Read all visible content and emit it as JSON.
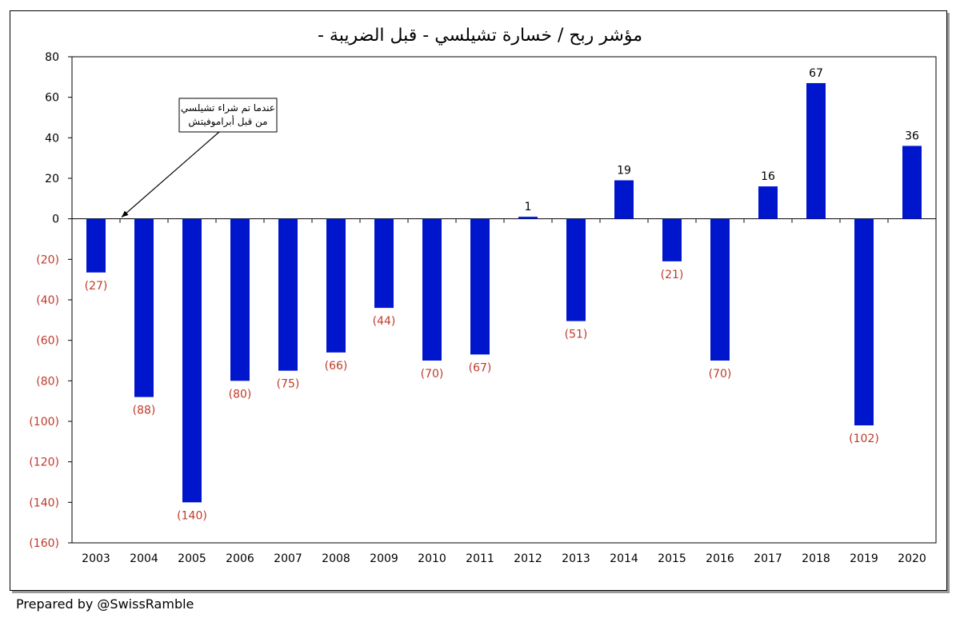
{
  "chart_data": {
    "type": "bar",
    "title": "مؤشر  ربح / خسارة تشيلسي - قبل الضريبة -",
    "xlabel": "",
    "ylabel": "",
    "ylim": [
      -160,
      80
    ],
    "yticks": [
      80,
      60,
      40,
      20,
      0,
      -20,
      -40,
      -60,
      -80,
      -100,
      -120,
      -140,
      -160
    ],
    "ytick_labels": [
      "80",
      "60",
      "40",
      "20",
      "0",
      "(20)",
      "(40)",
      "(60)",
      "(80)",
      "(100)",
      "(120)",
      "(140)",
      "(160)"
    ],
    "categories": [
      "2003",
      "2004",
      "2005",
      "2006",
      "2007",
      "2008",
      "2009",
      "2010",
      "2011",
      "2012",
      "2013",
      "2014",
      "2015",
      "2016",
      "2017",
      "2018",
      "2019",
      "2020"
    ],
    "values": [
      -26.5,
      -88,
      -140,
      -80,
      -75,
      -66,
      -44,
      -70,
      -67,
      1,
      -50.5,
      19,
      -21,
      -70,
      16,
      67,
      -102,
      36
    ],
    "data_labels": [
      "(27)",
      "(88)",
      "(140)",
      "(80)",
      "(75)",
      "(66)",
      "(44)",
      "(70)",
      "(67)",
      "1",
      "(51)",
      "19",
      "(21)",
      "(70)",
      "16",
      "67",
      "(102)",
      "36"
    ],
    "annotation": {
      "line1": "عندما تم شراء تشيلسي",
      "line2": "من قبل أبراموفيتش",
      "points_to": "2003"
    },
    "grid": false,
    "legend": "none"
  },
  "colors": {
    "bar": "#0016cc",
    "negative_label": "#c0392b",
    "positive_label": "#000000",
    "axis": "#000000",
    "frame_shadow": "#9a9a9a"
  },
  "footer": {
    "credit": "Prepared by @SwissRamble"
  }
}
